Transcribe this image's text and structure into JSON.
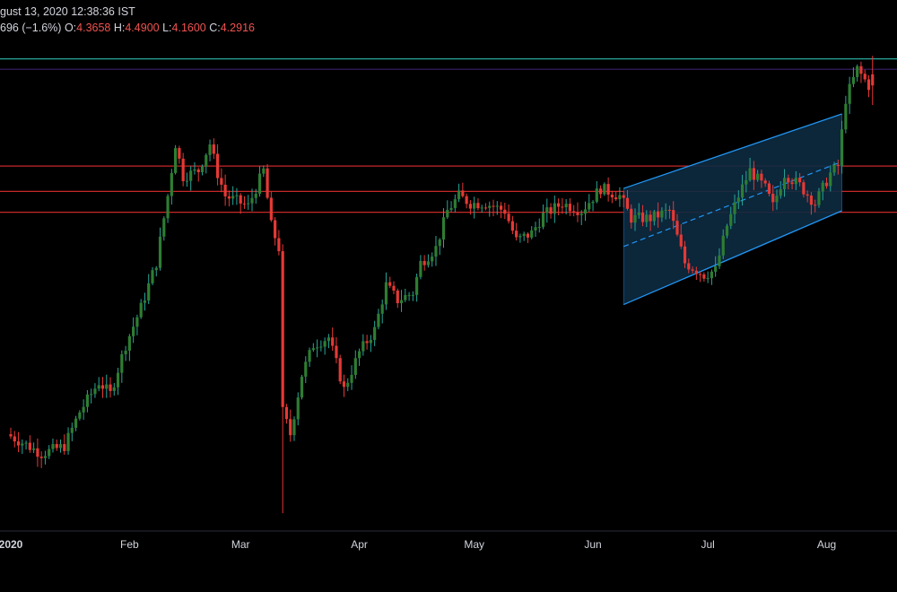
{
  "header": {
    "timestamp": "gust 13, 2020 12:38:36 IST",
    "change_text": "696 (−1.6%)",
    "o_label": "O:",
    "o_value": "4.3658",
    "h_label": "H:",
    "h_value": "4.4900",
    "l_label": "L:",
    "l_value": "4.1600",
    "c_label": "C:",
    "c_value": "4.2916"
  },
  "colors": {
    "background": "#000000",
    "up": "#26a69a",
    "up_body": "#2e7d32",
    "down": "#e53935",
    "hline": "#c62828",
    "top_line": "#26a69a",
    "purple_line": "#3a1f6b",
    "channel": "#2196f3",
    "channel_fill": "#0d2a40",
    "text": "#d1d4dc"
  },
  "chart_data": {
    "type": "candlestick",
    "x_axis": {
      "labels": [
        {
          "text": "2020",
          "bold": true
        },
        {
          "text": "Feb"
        },
        {
          "text": "Mar"
        },
        {
          "text": "Apr"
        },
        {
          "text": "May"
        },
        {
          "text": "Jun"
        },
        {
          "text": "Jul"
        },
        {
          "text": "Aug"
        }
      ],
      "start": "2020-01-01",
      "end": "2020-08-13"
    },
    "y_range": [
      1.3,
      4.6
    ],
    "last_ohlc": {
      "open": 4.3658,
      "high": 4.49,
      "low": 4.16,
      "close": 4.2916
    },
    "horizontal_lines": [
      {
        "value": 4.47,
        "color": "top_line"
      },
      {
        "value": 4.4,
        "color": "purple_line"
      },
      {
        "value": 3.75,
        "color": "hline"
      },
      {
        "value": 3.58,
        "color": "hline"
      },
      {
        "value": 3.44,
        "color": "hline"
      }
    ],
    "channel": {
      "start": "2020-06-09",
      "end": "2020-08-05",
      "upper": [
        3.6,
        4.1
      ],
      "lower": [
        2.82,
        3.45
      ],
      "mid": [
        3.21,
        3.78
      ]
    },
    "anchors": [
      [
        "2020-01-01",
        1.95
      ],
      [
        "2020-01-06",
        1.88
      ],
      [
        "2020-01-10",
        1.82
      ],
      [
        "2020-01-16",
        1.87
      ],
      [
        "2020-01-20",
        2.1
      ],
      [
        "2020-01-25",
        2.3
      ],
      [
        "2020-01-28",
        2.22
      ],
      [
        "2020-02-01",
        2.55
      ],
      [
        "2020-02-05",
        2.8
      ],
      [
        "2020-02-09",
        3.1
      ],
      [
        "2020-02-12",
        3.55
      ],
      [
        "2020-02-14",
        3.9
      ],
      [
        "2020-02-16",
        3.68
      ],
      [
        "2020-02-20",
        3.72
      ],
      [
        "2020-02-23",
        3.9
      ],
      [
        "2020-02-25",
        3.7
      ],
      [
        "2020-02-27",
        3.55
      ],
      [
        "2020-03-04",
        3.48
      ],
      [
        "2020-03-08",
        3.72
      ],
      [
        "2020-03-10",
        3.35
      ],
      [
        "2020-03-12",
        3.2
      ],
      [
        "2020-03-13",
        2.1
      ],
      [
        "2020-03-15",
        1.95
      ],
      [
        "2020-03-18",
        2.35
      ],
      [
        "2020-03-21",
        2.55
      ],
      [
        "2020-03-25",
        2.6
      ],
      [
        "2020-03-29",
        2.25
      ],
      [
        "2020-04-02",
        2.5
      ],
      [
        "2020-04-06",
        2.65
      ],
      [
        "2020-04-09",
        2.95
      ],
      [
        "2020-04-12",
        2.85
      ],
      [
        "2020-04-16",
        2.9
      ],
      [
        "2020-04-18",
        3.1
      ],
      [
        "2020-04-22",
        3.2
      ],
      [
        "2020-04-25",
        3.45
      ],
      [
        "2020-04-28",
        3.55
      ],
      [
        "2020-05-01",
        3.5
      ],
      [
        "2020-05-05",
        3.5
      ],
      [
        "2020-05-10",
        3.45
      ],
      [
        "2020-05-13",
        3.25
      ],
      [
        "2020-05-17",
        3.3
      ],
      [
        "2020-05-20",
        3.42
      ],
      [
        "2020-05-25",
        3.5
      ],
      [
        "2020-05-30",
        3.45
      ],
      [
        "2020-06-04",
        3.6
      ],
      [
        "2020-06-09",
        3.55
      ],
      [
        "2020-06-12",
        3.4
      ],
      [
        "2020-06-17",
        3.4
      ],
      [
        "2020-06-22",
        3.45
      ],
      [
        "2020-06-26",
        3.1
      ],
      [
        "2020-07-01",
        3.02
      ],
      [
        "2020-07-04",
        3.05
      ],
      [
        "2020-07-07",
        3.35
      ],
      [
        "2020-07-10",
        3.55
      ],
      [
        "2020-07-13",
        3.72
      ],
      [
        "2020-07-17",
        3.6
      ],
      [
        "2020-07-19",
        3.48
      ],
      [
        "2020-07-22",
        3.7
      ],
      [
        "2020-07-26",
        3.62
      ],
      [
        "2020-07-30",
        3.5
      ],
      [
        "2020-08-03",
        3.7
      ],
      [
        "2020-08-05",
        3.75
      ],
      [
        "2020-08-07",
        4.2
      ],
      [
        "2020-08-10",
        4.4
      ],
      [
        "2020-08-13",
        4.29
      ]
    ]
  }
}
